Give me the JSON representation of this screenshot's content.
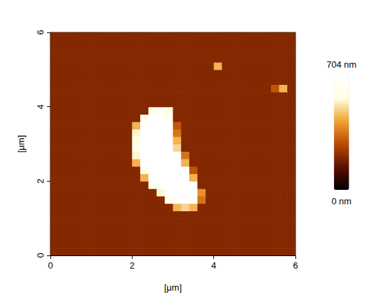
{
  "chart_data": {
    "type": "heatmap",
    "xlabel": "[μm]",
    "ylabel": "[μm]",
    "xlim": [
      0,
      6
    ],
    "ylim": [
      0,
      6
    ],
    "xticks": [
      0,
      2,
      4,
      6
    ],
    "yticks": [
      0,
      2,
      4,
      6
    ],
    "grid": false,
    "colors": [
      "#000000",
      "#5c1000",
      "#b84a00",
      "#f0a030",
      "#ffffe0",
      "#ffffff"
    ],
    "colorbar": {
      "range": [
        0,
        704
      ],
      "ticks": [
        {
          "value": 0,
          "label": "0 nm"
        },
        {
          "value": 704,
          "label": "704 nm"
        }
      ]
    },
    "x": [
      0.1,
      0.3,
      0.5,
      0.7,
      0.9,
      1.1,
      1.3,
      1.5,
      1.7,
      1.9,
      2.1,
      2.3,
      2.5,
      2.7,
      2.9,
      3.1,
      3.3,
      3.5,
      3.7,
      3.9,
      4.1,
      4.3,
      4.5,
      4.7,
      4.9,
      5.1,
      5.3,
      5.5,
      5.7,
      5.9
    ],
    "y": [
      0.1,
      0.3,
      0.5,
      0.7,
      0.9,
      1.1,
      1.3,
      1.5,
      1.7,
      1.9,
      2.1,
      2.3,
      2.5,
      2.7,
      2.9,
      3.1,
      3.3,
      3.5,
      3.7,
      3.9,
      4.1,
      4.3,
      4.5,
      4.7,
      4.9,
      5.1,
      5.3,
      5.5,
      5.7,
      5.9
    ],
    "z": [
      [
        200,
        200,
        200,
        200,
        200,
        200,
        200,
        200,
        200,
        200,
        200,
        200,
        200,
        200,
        200,
        200,
        200,
        200,
        200,
        200,
        200,
        200,
        200,
        200,
        200,
        200,
        200,
        200,
        200,
        200
      ],
      [
        200,
        200,
        200,
        200,
        200,
        200,
        200,
        200,
        200,
        200,
        200,
        200,
        200,
        200,
        200,
        200,
        200,
        200,
        200,
        200,
        200,
        200,
        200,
        200,
        200,
        200,
        200,
        200,
        200,
        200
      ],
      [
        200,
        200,
        200,
        200,
        200,
        200,
        200,
        200,
        200,
        200,
        200,
        200,
        200,
        200,
        200,
        200,
        200,
        200,
        200,
        200,
        200,
        200,
        200,
        200,
        200,
        200,
        200,
        200,
        200,
        200
      ],
      [
        200,
        200,
        200,
        200,
        200,
        200,
        200,
        200,
        200,
        200,
        200,
        200,
        200,
        200,
        200,
        200,
        200,
        200,
        200,
        200,
        200,
        200,
        200,
        200,
        200,
        200,
        200,
        200,
        200,
        200
      ],
      [
        200,
        200,
        200,
        200,
        200,
        200,
        200,
        200,
        200,
        200,
        200,
        200,
        200,
        200,
        200,
        200,
        200,
        200,
        200,
        200,
        200,
        200,
        200,
        200,
        200,
        200,
        200,
        200,
        200,
        200
      ],
      [
        200,
        200,
        200,
        200,
        200,
        200,
        200,
        200,
        200,
        200,
        200,
        200,
        200,
        200,
        200,
        200,
        200,
        200,
        200,
        200,
        200,
        200,
        200,
        200,
        200,
        200,
        200,
        200,
        200,
        200
      ],
      [
        200,
        200,
        200,
        200,
        200,
        200,
        200,
        200,
        200,
        200,
        200,
        200,
        200,
        200,
        200,
        450,
        500,
        450,
        200,
        200,
        200,
        200,
        200,
        200,
        200,
        200,
        200,
        200,
        200,
        200
      ],
      [
        200,
        200,
        200,
        200,
        200,
        200,
        200,
        200,
        200,
        200,
        200,
        200,
        200,
        200,
        600,
        680,
        680,
        680,
        350,
        200,
        200,
        200,
        200,
        200,
        200,
        200,
        200,
        200,
        200,
        200
      ],
      [
        200,
        200,
        200,
        200,
        200,
        200,
        200,
        200,
        200,
        200,
        200,
        200,
        200,
        550,
        704,
        704,
        704,
        704,
        400,
        200,
        200,
        200,
        200,
        200,
        200,
        200,
        200,
        200,
        200,
        200
      ],
      [
        200,
        200,
        200,
        200,
        200,
        200,
        200,
        200,
        200,
        200,
        200,
        200,
        600,
        704,
        704,
        704,
        704,
        704,
        200,
        200,
        200,
        200,
        200,
        200,
        200,
        200,
        200,
        200,
        200,
        200
      ],
      [
        200,
        200,
        200,
        200,
        200,
        200,
        200,
        200,
        200,
        200,
        200,
        450,
        704,
        704,
        704,
        704,
        704,
        450,
        200,
        200,
        200,
        200,
        200,
        200,
        200,
        200,
        200,
        200,
        200,
        200
      ],
      [
        200,
        200,
        200,
        200,
        200,
        200,
        200,
        200,
        200,
        200,
        200,
        600,
        704,
        704,
        704,
        704,
        704,
        300,
        200,
        200,
        200,
        200,
        200,
        200,
        200,
        200,
        200,
        200,
        200,
        200
      ],
      [
        200,
        200,
        200,
        200,
        200,
        200,
        200,
        200,
        200,
        200,
        450,
        704,
        704,
        704,
        704,
        704,
        450,
        200,
        200,
        200,
        200,
        200,
        200,
        200,
        200,
        200,
        200,
        200,
        200,
        200
      ],
      [
        200,
        200,
        200,
        200,
        200,
        200,
        200,
        200,
        200,
        200,
        550,
        704,
        704,
        704,
        704,
        704,
        350,
        200,
        200,
        200,
        200,
        200,
        200,
        200,
        200,
        200,
        200,
        200,
        200,
        200
      ],
      [
        200,
        200,
        200,
        200,
        200,
        200,
        200,
        200,
        200,
        200,
        600,
        704,
        704,
        704,
        704,
        500,
        200,
        200,
        200,
        200,
        200,
        200,
        200,
        200,
        200,
        200,
        200,
        200,
        200,
        200
      ],
      [
        200,
        200,
        200,
        200,
        200,
        200,
        200,
        200,
        200,
        200,
        600,
        704,
        704,
        704,
        704,
        450,
        200,
        200,
        200,
        200,
        200,
        200,
        200,
        200,
        200,
        200,
        200,
        200,
        200,
        200
      ],
      [
        200,
        200,
        200,
        200,
        200,
        200,
        200,
        200,
        200,
        200,
        550,
        704,
        704,
        704,
        704,
        350,
        200,
        200,
        200,
        200,
        200,
        200,
        200,
        200,
        200,
        200,
        200,
        200,
        200,
        200
      ],
      [
        200,
        200,
        200,
        200,
        200,
        200,
        200,
        200,
        200,
        200,
        450,
        704,
        704,
        704,
        704,
        300,
        200,
        200,
        200,
        200,
        200,
        200,
        200,
        200,
        200,
        200,
        200,
        200,
        200,
        200
      ],
      [
        200,
        200,
        200,
        200,
        200,
        200,
        200,
        200,
        200,
        200,
        200,
        620,
        704,
        704,
        640,
        200,
        200,
        200,
        200,
        200,
        200,
        200,
        200,
        200,
        200,
        200,
        200,
        200,
        200,
        200
      ],
      [
        200,
        200,
        200,
        200,
        200,
        200,
        200,
        200,
        200,
        200,
        200,
        200,
        600,
        650,
        600,
        200,
        200,
        200,
        200,
        200,
        200,
        200,
        200,
        200,
        200,
        200,
        200,
        200,
        200,
        200
      ],
      [
        200,
        200,
        200,
        200,
        200,
        200,
        200,
        200,
        200,
        200,
        200,
        200,
        200,
        200,
        200,
        200,
        200,
        200,
        200,
        200,
        200,
        200,
        200,
        200,
        200,
        200,
        200,
        200,
        200,
        200
      ],
      [
        200,
        200,
        200,
        200,
        200,
        200,
        200,
        200,
        200,
        200,
        200,
        200,
        200,
        200,
        200,
        200,
        200,
        200,
        200,
        200,
        200,
        200,
        200,
        200,
        200,
        200,
        200,
        200,
        200,
        200
      ],
      [
        200,
        200,
        200,
        200,
        200,
        200,
        200,
        200,
        200,
        200,
        200,
        200,
        200,
        200,
        200,
        200,
        200,
        200,
        200,
        200,
        200,
        200,
        200,
        200,
        200,
        200,
        200,
        300,
        450,
        200
      ],
      [
        200,
        200,
        200,
        200,
        200,
        200,
        200,
        200,
        200,
        200,
        200,
        200,
        200,
        200,
        200,
        200,
        200,
        200,
        200,
        200,
        200,
        200,
        200,
        200,
        200,
        200,
        200,
        200,
        200,
        200
      ],
      [
        200,
        200,
        200,
        200,
        200,
        200,
        200,
        200,
        200,
        200,
        200,
        200,
        200,
        200,
        200,
        200,
        200,
        200,
        200,
        200,
        200,
        200,
        200,
        200,
        200,
        200,
        200,
        200,
        200,
        200
      ],
      [
        200,
        200,
        200,
        200,
        200,
        200,
        200,
        200,
        200,
        200,
        200,
        200,
        200,
        200,
        200,
        200,
        200,
        200,
        200,
        200,
        450,
        200,
        200,
        200,
        200,
        200,
        200,
        200,
        200,
        200
      ],
      [
        200,
        200,
        200,
        200,
        200,
        200,
        200,
        200,
        200,
        200,
        200,
        200,
        200,
        200,
        200,
        200,
        200,
        200,
        200,
        200,
        200,
        200,
        200,
        200,
        200,
        200,
        200,
        200,
        200,
        200
      ],
      [
        200,
        200,
        200,
        200,
        200,
        200,
        200,
        200,
        200,
        200,
        200,
        200,
        200,
        200,
        200,
        200,
        200,
        200,
        200,
        200,
        200,
        200,
        200,
        200,
        200,
        200,
        200,
        200,
        200,
        200
      ],
      [
        200,
        200,
        200,
        200,
        200,
        200,
        200,
        200,
        200,
        200,
        200,
        200,
        200,
        200,
        200,
        200,
        200,
        200,
        200,
        200,
        200,
        200,
        200,
        200,
        200,
        200,
        200,
        200,
        200,
        200
      ],
      [
        200,
        200,
        200,
        200,
        200,
        200,
        200,
        200,
        200,
        200,
        200,
        200,
        200,
        200,
        200,
        200,
        200,
        200,
        200,
        200,
        200,
        200,
        200,
        200,
        200,
        200,
        200,
        200,
        200,
        200
      ]
    ]
  }
}
